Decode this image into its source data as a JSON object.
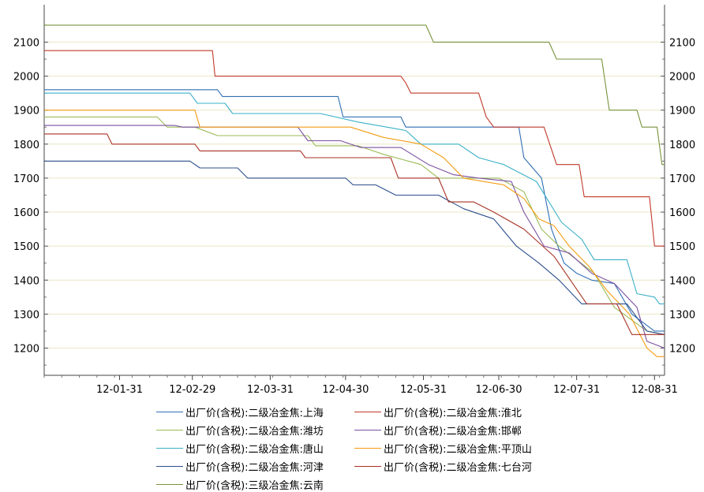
{
  "chart_data": {
    "type": "line",
    "title": "",
    "xlabel": "",
    "ylabel": "",
    "ylim": [
      1120,
      2210
    ],
    "yticks": [
      1200,
      1300,
      1400,
      1500,
      1600,
      1700,
      1800,
      1900,
      2000,
      2100
    ],
    "xlim": [
      "2012-01-01",
      "2012-09-04"
    ],
    "xticks": [
      {
        "date": "2012-01-31",
        "label": "12-01-31"
      },
      {
        "date": "2012-02-29",
        "label": "12-02-29"
      },
      {
        "date": "2012-03-31",
        "label": "12-03-31"
      },
      {
        "date": "2012-04-30",
        "label": "12-04-30"
      },
      {
        "date": "2012-05-31",
        "label": "12-05-31"
      },
      {
        "date": "2012-06-30",
        "label": "12-06-30"
      },
      {
        "date": "2012-07-31",
        "label": "12-07-31"
      },
      {
        "date": "2012-08-31",
        "label": "12-08-31"
      }
    ],
    "grid": true,
    "legend_position": "bottom",
    "series": [
      {
        "name": "出厂价(含税):二级冶金焦:上海",
        "color": "#2f6fb3",
        "points": [
          [
            "2012-01-01",
            1960
          ],
          [
            "2012-03-10",
            1960
          ],
          [
            "2012-03-12",
            1940
          ],
          [
            "2012-04-27",
            1940
          ],
          [
            "2012-04-29",
            1880
          ],
          [
            "2012-05-22",
            1880
          ],
          [
            "2012-05-24",
            1850
          ],
          [
            "2012-07-08",
            1850
          ],
          [
            "2012-07-10",
            1760
          ],
          [
            "2012-07-17",
            1700
          ],
          [
            "2012-07-21",
            1550
          ],
          [
            "2012-07-26",
            1450
          ],
          [
            "2012-07-31",
            1420
          ],
          [
            "2012-08-06",
            1400
          ],
          [
            "2012-08-15",
            1390
          ],
          [
            "2012-08-22",
            1300
          ],
          [
            "2012-08-31",
            1250
          ],
          [
            "2012-09-04",
            1250
          ]
        ]
      },
      {
        "name": "出厂价(含税):二级冶金焦:淮北",
        "color": "#c0392b",
        "points": [
          [
            "2012-01-01",
            2075
          ],
          [
            "2012-03-08",
            2075
          ],
          [
            "2012-03-09",
            2000
          ],
          [
            "2012-05-22",
            2000
          ],
          [
            "2012-05-24",
            1980
          ],
          [
            "2012-05-26",
            1950
          ],
          [
            "2012-06-22",
            1950
          ],
          [
            "2012-06-25",
            1880
          ],
          [
            "2012-06-28",
            1850
          ],
          [
            "2012-07-18",
            1850
          ],
          [
            "2012-07-23",
            1740
          ],
          [
            "2012-08-01",
            1740
          ],
          [
            "2012-08-03",
            1645
          ],
          [
            "2012-08-29",
            1645
          ],
          [
            "2012-08-31",
            1500
          ],
          [
            "2012-09-04",
            1500
          ]
        ]
      },
      {
        "name": "出厂价(含税):二级冶金焦:潍坊",
        "color": "#9bbb59",
        "points": [
          [
            "2012-01-01",
            1880
          ],
          [
            "2012-02-15",
            1880
          ],
          [
            "2012-02-19",
            1850
          ],
          [
            "2012-03-01",
            1850
          ],
          [
            "2012-03-10",
            1825
          ],
          [
            "2012-04-15",
            1825
          ],
          [
            "2012-04-18",
            1795
          ],
          [
            "2012-05-05",
            1795
          ],
          [
            "2012-05-15",
            1770
          ],
          [
            "2012-05-30",
            1740
          ],
          [
            "2012-06-06",
            1700
          ],
          [
            "2012-06-30",
            1700
          ],
          [
            "2012-07-10",
            1660
          ],
          [
            "2012-07-17",
            1550
          ],
          [
            "2012-07-24",
            1500
          ],
          [
            "2012-08-07",
            1420
          ],
          [
            "2012-08-15",
            1320
          ],
          [
            "2012-08-28",
            1250
          ],
          [
            "2012-09-04",
            1240
          ]
        ]
      },
      {
        "name": "出厂价(含税):二级冶金焦:邯郸",
        "color": "#7b4fa0",
        "points": [
          [
            "2012-01-01",
            1855
          ],
          [
            "2012-02-22",
            1855
          ],
          [
            "2012-02-25",
            1850
          ],
          [
            "2012-04-11",
            1850
          ],
          [
            "2012-04-15",
            1810
          ],
          [
            "2012-04-28",
            1810
          ],
          [
            "2012-05-06",
            1790
          ],
          [
            "2012-05-22",
            1790
          ],
          [
            "2012-06-02",
            1740
          ],
          [
            "2012-06-12",
            1710
          ],
          [
            "2012-06-22",
            1700
          ],
          [
            "2012-07-05",
            1690
          ],
          [
            "2012-07-10",
            1600
          ],
          [
            "2012-07-18",
            1500
          ],
          [
            "2012-07-28",
            1480
          ],
          [
            "2012-08-06",
            1420
          ],
          [
            "2012-08-15",
            1390
          ],
          [
            "2012-08-24",
            1320
          ],
          [
            "2012-08-28",
            1220
          ],
          [
            "2012-09-04",
            1200
          ]
        ]
      },
      {
        "name": "出厂价(含税):二级冶金焦:唐山",
        "color": "#3ab0c8",
        "points": [
          [
            "2012-01-01",
            1950
          ],
          [
            "2012-02-28",
            1950
          ],
          [
            "2012-03-02",
            1920
          ],
          [
            "2012-03-13",
            1920
          ],
          [
            "2012-03-16",
            1890
          ],
          [
            "2012-04-20",
            1890
          ],
          [
            "2012-05-05",
            1865
          ],
          [
            "2012-05-24",
            1840
          ],
          [
            "2012-05-30",
            1800
          ],
          [
            "2012-06-14",
            1800
          ],
          [
            "2012-06-22",
            1760
          ],
          [
            "2012-07-02",
            1740
          ],
          [
            "2012-07-15",
            1690
          ],
          [
            "2012-07-25",
            1570
          ],
          [
            "2012-08-02",
            1520
          ],
          [
            "2012-08-07",
            1460
          ],
          [
            "2012-08-20",
            1460
          ],
          [
            "2012-08-24",
            1360
          ],
          [
            "2012-08-31",
            1350
          ],
          [
            "2012-09-02",
            1330
          ],
          [
            "2012-09-04",
            1330
          ]
        ]
      },
      {
        "name": "出厂价(含税):二级冶金焦:平顶山",
        "color": "#f39c12",
        "points": [
          [
            "2012-01-01",
            1900
          ],
          [
            "2012-03-01",
            1900
          ],
          [
            "2012-03-03",
            1850
          ],
          [
            "2012-05-02",
            1850
          ],
          [
            "2012-05-15",
            1820
          ],
          [
            "2012-05-30",
            1800
          ],
          [
            "2012-06-08",
            1760
          ],
          [
            "2012-06-16",
            1700
          ],
          [
            "2012-07-02",
            1680
          ],
          [
            "2012-07-10",
            1640
          ],
          [
            "2012-07-16",
            1580
          ],
          [
            "2012-07-22",
            1560
          ],
          [
            "2012-07-28",
            1500
          ],
          [
            "2012-08-05",
            1440
          ],
          [
            "2012-08-12",
            1370
          ],
          [
            "2012-08-21",
            1300
          ],
          [
            "2012-08-28",
            1200
          ],
          [
            "2012-09-01",
            1175
          ],
          [
            "2012-09-04",
            1175
          ]
        ]
      },
      {
        "name": "出厂价(含税):二级冶金焦:河津",
        "color": "#2c4f8c",
        "points": [
          [
            "2012-01-01",
            1750
          ],
          [
            "2012-02-28",
            1750
          ],
          [
            "2012-03-03",
            1730
          ],
          [
            "2012-03-18",
            1730
          ],
          [
            "2012-03-22",
            1700
          ],
          [
            "2012-04-30",
            1700
          ],
          [
            "2012-05-03",
            1680
          ],
          [
            "2012-05-12",
            1680
          ],
          [
            "2012-05-20",
            1650
          ],
          [
            "2012-06-06",
            1650
          ],
          [
            "2012-06-16",
            1610
          ],
          [
            "2012-06-28",
            1580
          ],
          [
            "2012-07-07",
            1500
          ],
          [
            "2012-07-16",
            1450
          ],
          [
            "2012-07-24",
            1400
          ],
          [
            "2012-08-02",
            1330
          ],
          [
            "2012-08-20",
            1330
          ],
          [
            "2012-08-28",
            1250
          ],
          [
            "2012-09-04",
            1240
          ]
        ]
      },
      {
        "name": "出厂价(含税):二级冶金焦:七台河",
        "color": "#a93226",
        "points": [
          [
            "2012-01-01",
            1830
          ],
          [
            "2012-01-26",
            1830
          ],
          [
            "2012-01-28",
            1800
          ],
          [
            "2012-03-01",
            1800
          ],
          [
            "2012-03-03",
            1780
          ],
          [
            "2012-04-12",
            1780
          ],
          [
            "2012-04-14",
            1760
          ],
          [
            "2012-05-18",
            1760
          ],
          [
            "2012-05-21",
            1700
          ],
          [
            "2012-06-06",
            1700
          ],
          [
            "2012-06-10",
            1630
          ],
          [
            "2012-06-20",
            1630
          ],
          [
            "2012-06-28",
            1600
          ],
          [
            "2012-07-10",
            1550
          ],
          [
            "2012-07-22",
            1470
          ],
          [
            "2012-08-04",
            1330
          ],
          [
            "2012-08-16",
            1330
          ],
          [
            "2012-08-22",
            1240
          ],
          [
            "2012-09-04",
            1240
          ]
        ]
      },
      {
        "name": "出厂价(含税):三级冶金焦:云南",
        "color": "#77933c",
        "points": [
          [
            "2012-01-01",
            2150
          ],
          [
            "2012-06-01",
            2150
          ],
          [
            "2012-06-04",
            2100
          ],
          [
            "2012-07-20",
            2100
          ],
          [
            "2012-07-23",
            2050
          ],
          [
            "2012-08-10",
            2050
          ],
          [
            "2012-08-13",
            1900
          ],
          [
            "2012-08-24",
            1900
          ],
          [
            "2012-08-26",
            1850
          ],
          [
            "2012-09-01",
            1850
          ],
          [
            "2012-09-03",
            1740
          ],
          [
            "2012-09-04",
            1740
          ]
        ]
      }
    ]
  }
}
